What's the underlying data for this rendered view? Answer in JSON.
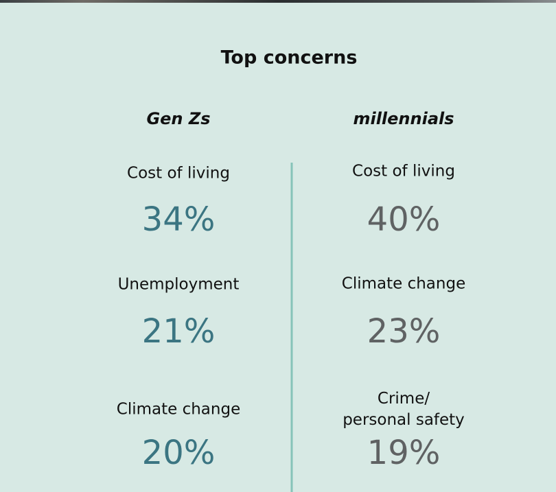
{
  "title": "Top concerns",
  "columns": [
    {
      "heading": "Gen Zs",
      "items": [
        {
          "label": [
            "Cost of living"
          ],
          "value": "34%"
        },
        {
          "label": [
            "Unemployment"
          ],
          "value": "21%"
        },
        {
          "label": [
            "Climate change"
          ],
          "value": "20%"
        }
      ]
    },
    {
      "heading": "millennials",
      "items": [
        {
          "label": [
            "Cost of living"
          ],
          "value": "40%"
        },
        {
          "label": [
            "Climate change"
          ],
          "value": "23%"
        },
        {
          "label": [
            "Crime/",
            "personal safety"
          ],
          "value": "19%"
        }
      ]
    }
  ]
}
